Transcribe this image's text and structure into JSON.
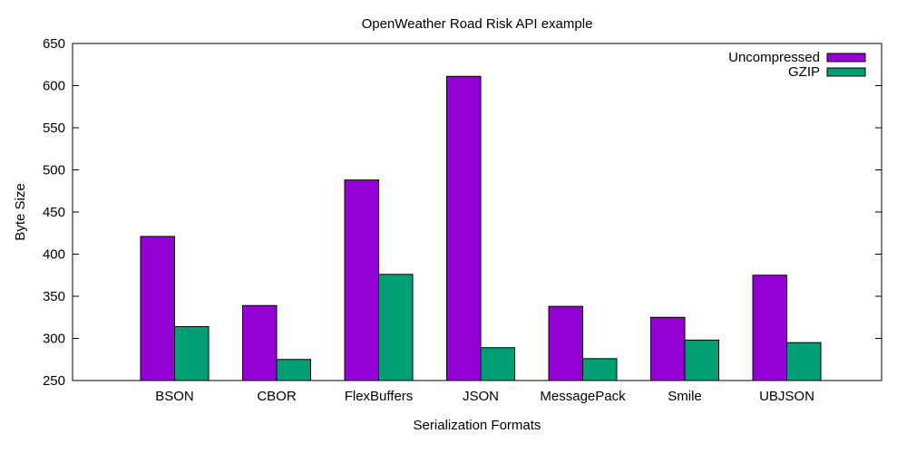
{
  "chart_data": {
    "type": "bar",
    "title": "OpenWeather Road Risk API example",
    "xlabel": "Serialization Formats",
    "ylabel": "Byte Size",
    "ylim": [
      250,
      650
    ],
    "yticks": [
      250,
      300,
      350,
      400,
      450,
      500,
      550,
      600,
      650
    ],
    "grid": false,
    "legend_position": "top-right",
    "categories": [
      "BSON",
      "CBOR",
      "FlexBuffers",
      "JSON",
      "MessagePack",
      "Smile",
      "UBJSON"
    ],
    "series": [
      {
        "name": "Uncompressed",
        "color": "#9400d3",
        "values": [
          421,
          339,
          488,
          611,
          338,
          325,
          375
        ]
      },
      {
        "name": "GZIP",
        "color": "#009e73",
        "values": [
          314,
          275,
          376,
          289,
          276,
          298,
          295
        ]
      }
    ]
  }
}
